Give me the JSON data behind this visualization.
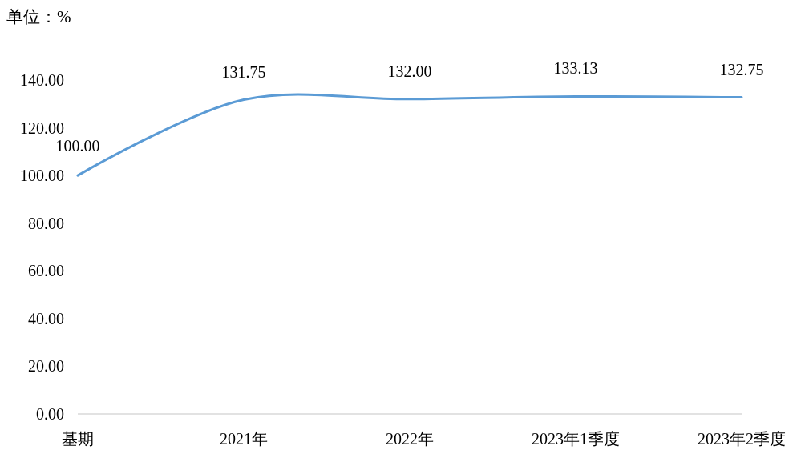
{
  "chart_data": {
    "type": "line",
    "ylabel": "单位：%",
    "categories": [
      "基期",
      "2021年",
      "2022年",
      "2023年1季度",
      "2023年2季度"
    ],
    "series": [
      {
        "color": "#5b9bd5",
        "values": [
          100,
          131.75,
          132,
          133.13,
          132.75
        ],
        "value_labels": [
          "100.00",
          "131.75",
          "132.00",
          "133.13",
          "132.75"
        ]
      }
    ],
    "ylim": [
      0,
      140
    ],
    "yticks": [
      {
        "value": 0,
        "label": "0.00"
      },
      {
        "value": 20,
        "label": "20.00"
      },
      {
        "value": 40,
        "label": "40.00"
      },
      {
        "value": 60,
        "label": "60.00"
      },
      {
        "value": 80,
        "label": "80.00"
      },
      {
        "value": 100,
        "label": "100.00"
      },
      {
        "value": 120,
        "label": "120.00"
      },
      {
        "value": 140,
        "label": "140.00"
      }
    ],
    "line_style": "solid"
  }
}
